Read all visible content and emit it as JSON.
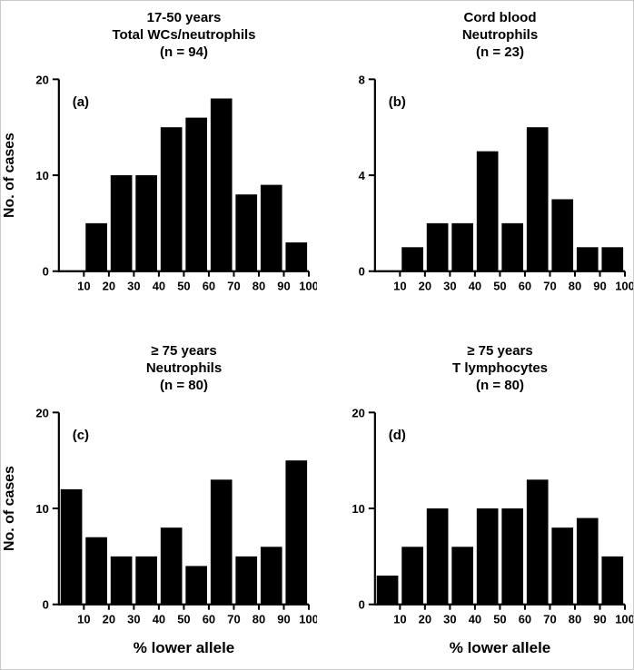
{
  "figure": {
    "xlabel": "% lower allele",
    "ylabel": "No. of cases"
  },
  "chart_data": [
    {
      "type": "bar",
      "panel": "a",
      "panel_label": "(a)",
      "title_lines": [
        "17-50 years",
        "Total WCs/neutrophils",
        "(n = 94)"
      ],
      "n": 94,
      "xlabel": "",
      "ylabel": "No. of cases",
      "xlim": [
        0,
        100
      ],
      "ylim": [
        0,
        20
      ],
      "xticks": [
        10,
        20,
        30,
        40,
        50,
        60,
        70,
        80,
        90,
        100
      ],
      "yticks": [
        0,
        10,
        20
      ],
      "bin_start": 10,
      "bin_width": 10,
      "categories": [
        "10-20",
        "20-30",
        "30-40",
        "40-50",
        "50-60",
        "60-70",
        "70-80",
        "80-90",
        "90-100"
      ],
      "values": [
        5,
        10,
        10,
        15,
        16,
        18,
        8,
        9,
        3
      ]
    },
    {
      "type": "bar",
      "panel": "b",
      "panel_label": "(b)",
      "title_lines": [
        "Cord blood",
        "Neutrophils",
        "(n = 23)"
      ],
      "n": 23,
      "xlabel": "",
      "ylabel": "",
      "xlim": [
        0,
        100
      ],
      "ylim": [
        0,
        8
      ],
      "xticks": [
        10,
        20,
        30,
        40,
        50,
        60,
        70,
        80,
        90,
        100
      ],
      "yticks": [
        0,
        4,
        8
      ],
      "bin_start": 10,
      "bin_width": 10,
      "categories": [
        "10-20",
        "20-30",
        "30-40",
        "40-50",
        "50-60",
        "60-70",
        "70-80",
        "80-90",
        "90-100"
      ],
      "values": [
        1,
        2,
        2,
        5,
        2,
        6,
        3,
        1,
        1
      ]
    },
    {
      "type": "bar",
      "panel": "c",
      "panel_label": "(c)",
      "title_lines": [
        "≥ 75 years",
        "Neutrophils",
        "(n = 80)"
      ],
      "n": 80,
      "xlabel": "% lower allele",
      "ylabel": "No. of cases",
      "xlim": [
        0,
        100
      ],
      "ylim": [
        0,
        20
      ],
      "xticks": [
        10,
        20,
        30,
        40,
        50,
        60,
        70,
        80,
        90,
        100
      ],
      "yticks": [
        0,
        10,
        20
      ],
      "bin_start": 0,
      "bin_width": 10,
      "categories": [
        "0-10",
        "10-20",
        "20-30",
        "30-40",
        "40-50",
        "50-60",
        "60-70",
        "70-80",
        "80-90",
        "90-100"
      ],
      "values": [
        12,
        7,
        5,
        5,
        8,
        4,
        13,
        5,
        6,
        15
      ]
    },
    {
      "type": "bar",
      "panel": "d",
      "panel_label": "(d)",
      "title_lines": [
        "≥ 75 years",
        "T lymphocytes",
        "(n = 80)"
      ],
      "n": 80,
      "xlabel": "% lower allele",
      "ylabel": "",
      "xlim": [
        0,
        100
      ],
      "ylim": [
        0,
        20
      ],
      "xticks": [
        10,
        20,
        30,
        40,
        50,
        60,
        70,
        80,
        90,
        100
      ],
      "yticks": [
        0,
        10,
        20
      ],
      "bin_start": 0,
      "bin_width": 10,
      "categories": [
        "0-10",
        "10-20",
        "20-30",
        "30-40",
        "40-50",
        "50-60",
        "60-70",
        "70-80",
        "80-90",
        "90-100"
      ],
      "values": [
        3,
        6,
        10,
        6,
        10,
        10,
        13,
        8,
        9,
        5
      ]
    }
  ]
}
